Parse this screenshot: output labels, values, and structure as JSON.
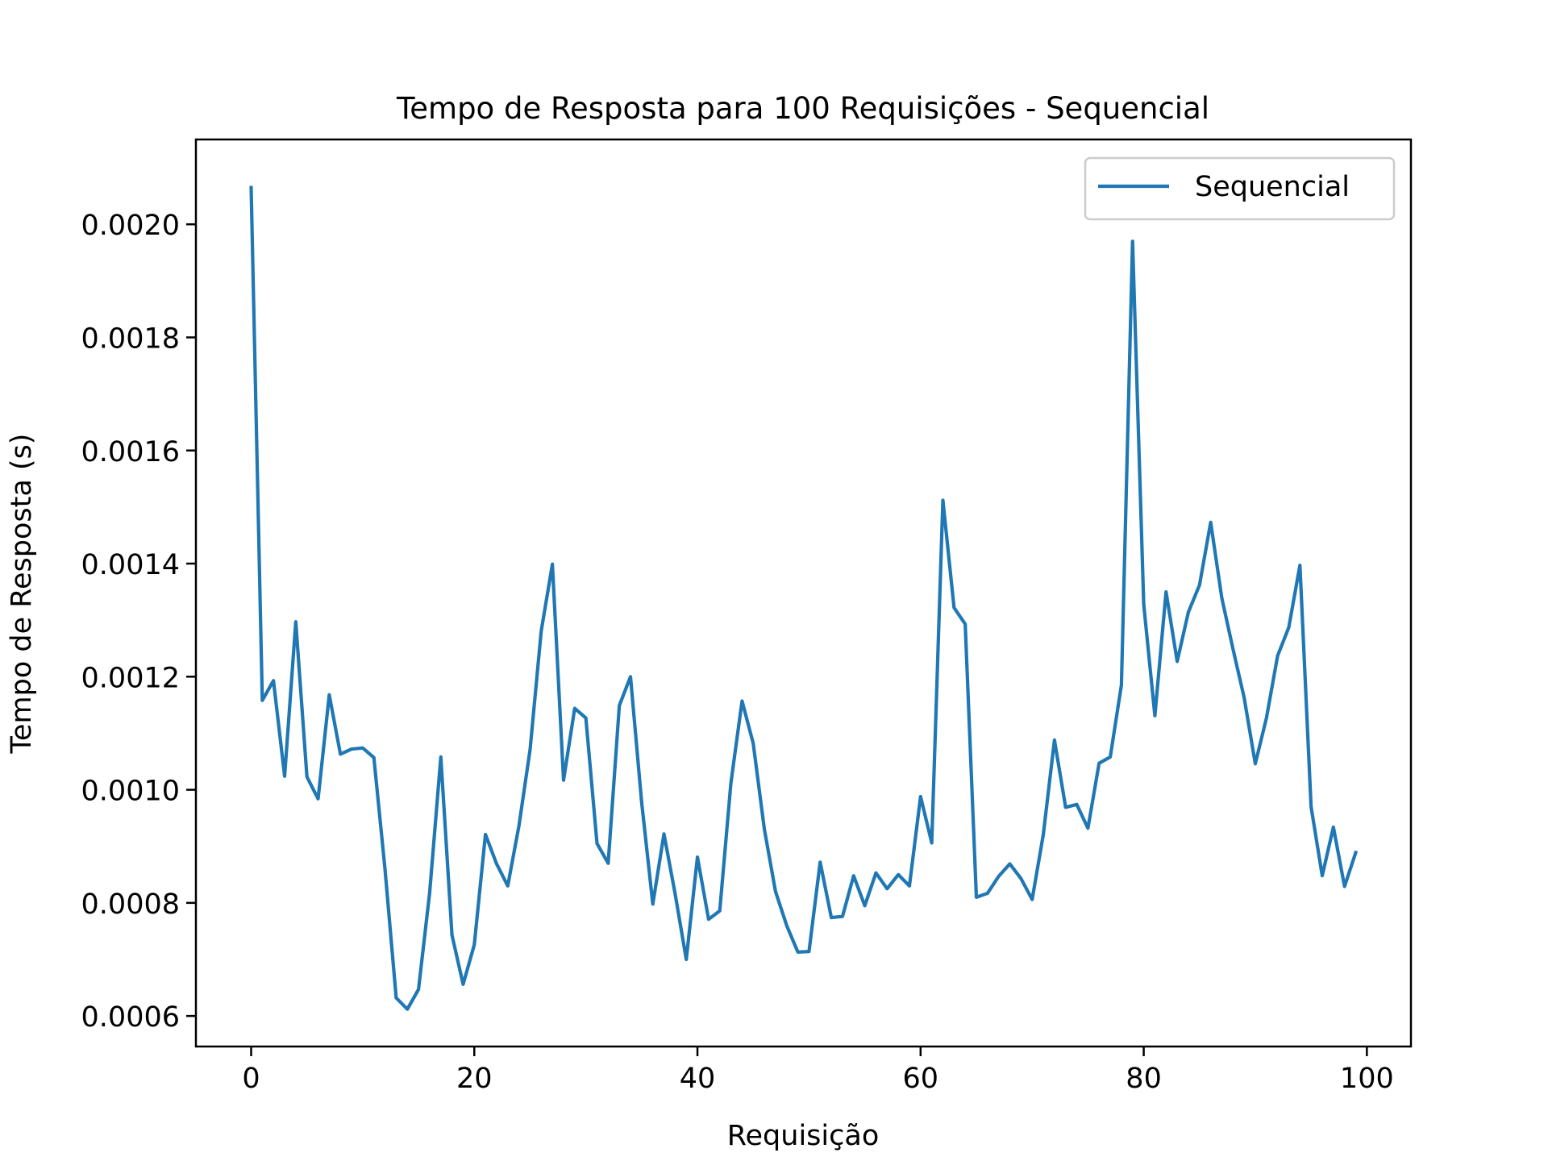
{
  "chart_data": {
    "type": "line",
    "title": "Tempo de Resposta para 100 Requisições - Sequencial",
    "xlabel": "Requisição",
    "ylabel": "Tempo de Resposta (s)",
    "xlim": [
      -4.95,
      103.95
    ],
    "ylim": [
      0.000546,
      0.00215
    ],
    "x_ticks": [
      0,
      20,
      40,
      60,
      80,
      100
    ],
    "x_tick_labels": [
      "0",
      "20",
      "40",
      "60",
      "80",
      "100"
    ],
    "y_ticks": [
      0.0006,
      0.0008,
      0.001,
      0.0012,
      0.0014,
      0.0016,
      0.0018,
      0.002
    ],
    "y_tick_labels": [
      "0.0006",
      "0.0008",
      "0.0010",
      "0.0012",
      "0.0014",
      "0.0016",
      "0.0018",
      "0.0020"
    ],
    "grid": false,
    "legend": {
      "position": "upper right",
      "entries": [
        "Sequencial"
      ]
    },
    "series": [
      {
        "name": "Sequencial",
        "color": "#1f77b4",
        "x": [
          0,
          1,
          2,
          3,
          4,
          5,
          6,
          7,
          8,
          9,
          10,
          11,
          12,
          13,
          14,
          15,
          16,
          17,
          18,
          19,
          20,
          21,
          22,
          23,
          24,
          25,
          26,
          27,
          28,
          29,
          30,
          31,
          32,
          33,
          34,
          35,
          36,
          37,
          38,
          39,
          40,
          41,
          42,
          43,
          44,
          45,
          46,
          47,
          48,
          49,
          50,
          51,
          52,
          53,
          54,
          55,
          56,
          57,
          58,
          59,
          60,
          61,
          62,
          63,
          64,
          65,
          66,
          67,
          68,
          69,
          70,
          71,
          72,
          73,
          74,
          75,
          76,
          77,
          78,
          79,
          80,
          81,
          82,
          83,
          84,
          85,
          86,
          87,
          88,
          89,
          90,
          91,
          92,
          93,
          94,
          95,
          96,
          97,
          98,
          99
        ],
        "values": [
          0.002065,
          0.001158,
          0.001193,
          0.001024,
          0.001297,
          0.001023,
          0.000984,
          0.001168,
          0.001063,
          0.001072,
          0.001074,
          0.001057,
          0.000859,
          0.000632,
          0.000612,
          0.000647,
          0.000818,
          0.001058,
          0.000743,
          0.000656,
          0.000726,
          0.000921,
          0.000869,
          0.00083,
          0.000936,
          0.001071,
          0.001281,
          0.001399,
          0.001017,
          0.001144,
          0.001127,
          0.000905,
          0.00087,
          0.001149,
          0.0012,
          0.000978,
          0.000798,
          0.000922,
          0.000816,
          0.0007,
          0.000881,
          0.000771,
          0.000786,
          0.001012,
          0.001157,
          0.001082,
          0.00093,
          0.00082,
          0.00076,
          0.000713,
          0.000714,
          0.000872,
          0.000774,
          0.000776,
          0.000848,
          0.000795,
          0.000853,
          0.000825,
          0.00085,
          0.00083,
          0.000988,
          0.000906,
          0.001512,
          0.001322,
          0.001293,
          0.00081,
          0.000817,
          0.000847,
          0.000869,
          0.000843,
          0.000806,
          0.000921,
          0.001088,
          0.000969,
          0.000974,
          0.000932,
          0.001047,
          0.001058,
          0.001185,
          0.00197,
          0.001328,
          0.001131,
          0.00135,
          0.001227,
          0.001314,
          0.001362,
          0.001473,
          0.001339,
          0.001249,
          0.001163,
          0.001046,
          0.001127,
          0.001237,
          0.001287,
          0.001397,
          0.00097,
          0.000848,
          0.000934,
          0.000829,
          0.000889
        ]
      }
    ]
  }
}
